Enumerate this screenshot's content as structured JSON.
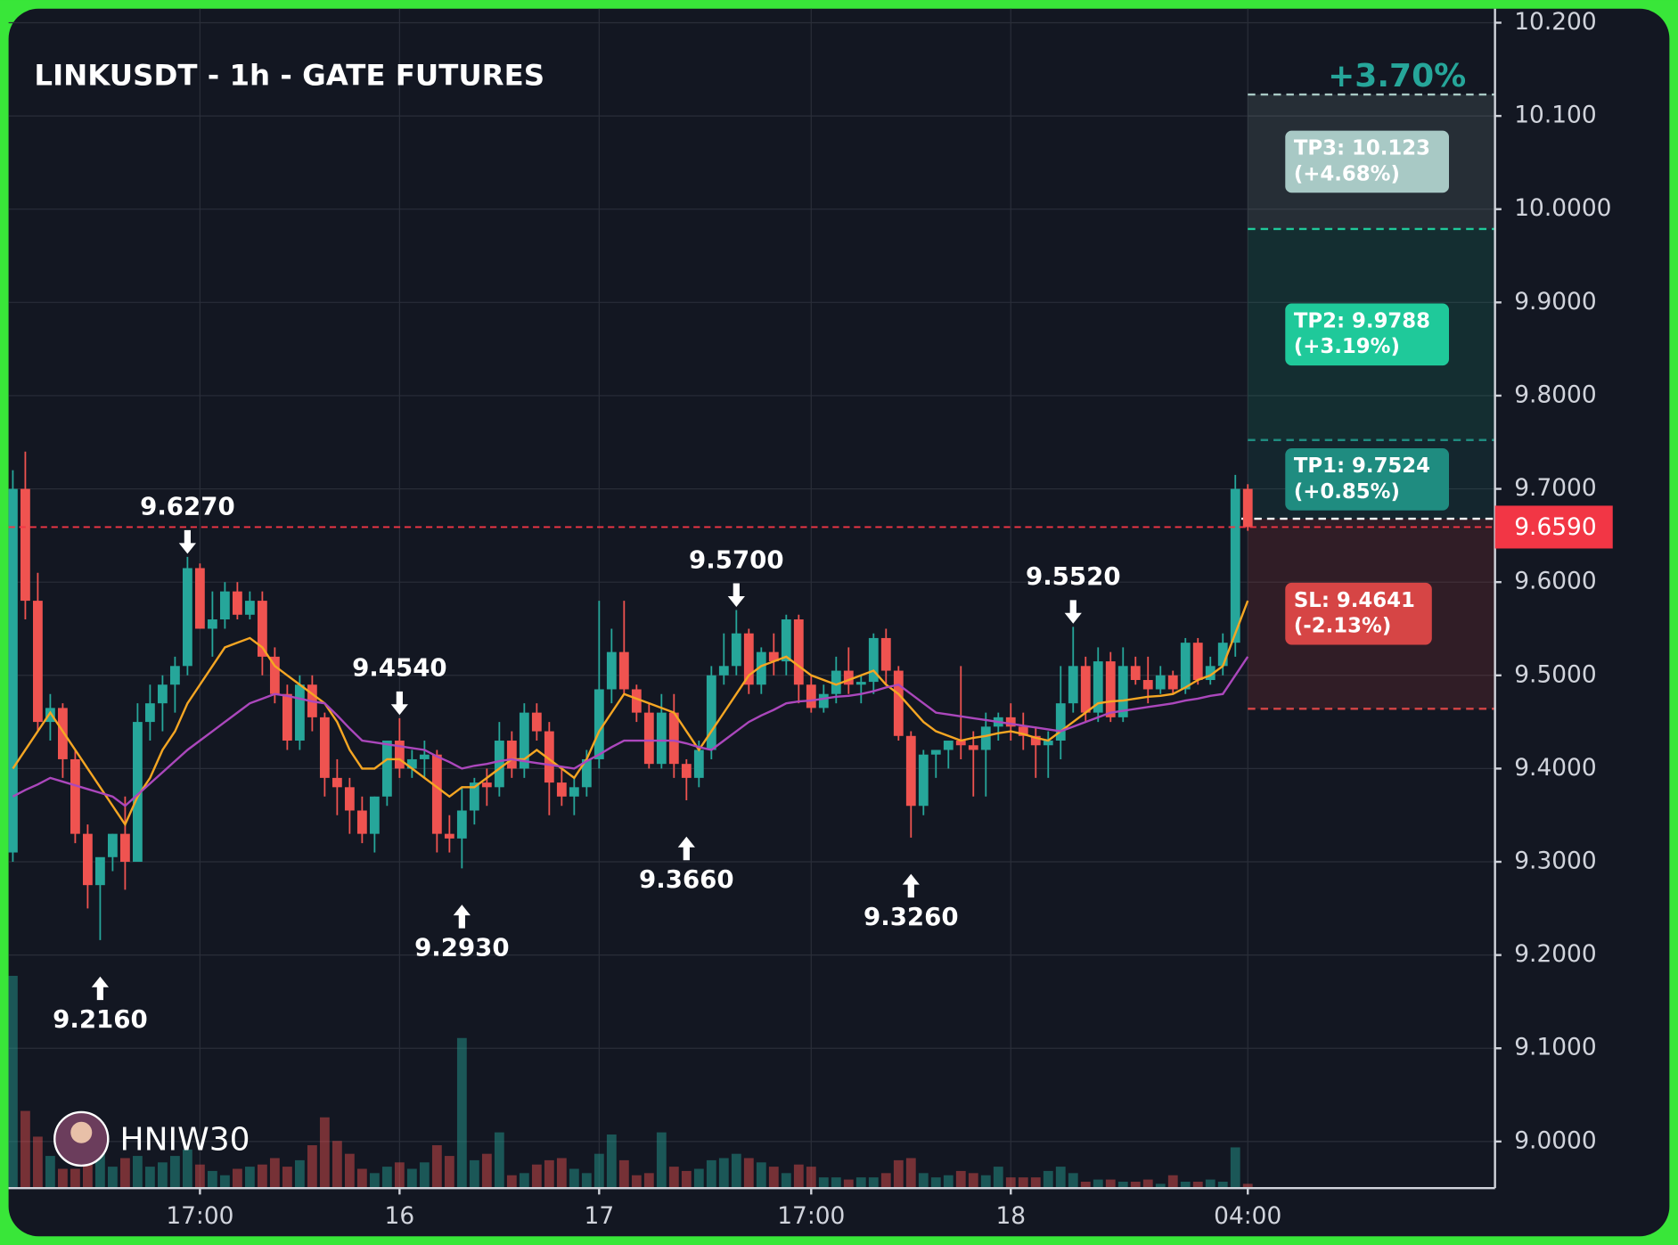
{
  "chart_data": {
    "type": "candlestick",
    "title": "LINKUSDT - 1h - GATE FUTURES",
    "watermark": "HNIW30",
    "categories": [
      null,
      null,
      null,
      null,
      null,
      null,
      null,
      null,
      null,
      null,
      null,
      null,
      null,
      null,
      null,
      "17:00",
      null,
      null,
      null,
      null,
      null,
      null,
      null,
      null,
      null,
      null,
      null,
      null,
      null,
      null,
      null,
      "16",
      null,
      null,
      null,
      null,
      null,
      null,
      null,
      null,
      null,
      null,
      null,
      null,
      null,
      null,
      null,
      "17",
      null,
      null,
      null,
      null,
      null,
      null,
      null,
      null,
      null,
      null,
      null,
      null,
      null,
      null,
      null,
      null,
      "17:00",
      null,
      null,
      null,
      null,
      null,
      null,
      null,
      null,
      null,
      null,
      null,
      null,
      null,
      null,
      null,
      "18",
      null,
      null,
      null,
      null,
      null,
      null,
      null,
      null,
      null,
      null,
      null,
      null,
      null,
      null,
      null,
      null,
      null,
      null,
      "04:00"
    ],
    "open": [
      9.31,
      9.7,
      9.58,
      9.45,
      9.465,
      9.41,
      9.33,
      9.275,
      9.305,
      9.33,
      9.3,
      9.45,
      9.47,
      9.49,
      9.51,
      9.615,
      9.55,
      9.56,
      9.59,
      9.565,
      9.58,
      9.52,
      9.48,
      9.43,
      9.49,
      9.455,
      9.39,
      9.38,
      9.355,
      9.33,
      9.37,
      9.43,
      9.4,
      9.41,
      9.415,
      9.33,
      9.325,
      9.355,
      9.385,
      9.38,
      9.43,
      9.4,
      9.46,
      9.44,
      9.385,
      9.37,
      9.38,
      9.41,
      9.485,
      9.525,
      9.485,
      9.46,
      9.405,
      9.46,
      9.405,
      9.39,
      9.42,
      9.5,
      9.51,
      9.545,
      9.49,
      9.525,
      9.515,
      9.56,
      9.49,
      9.465,
      9.48,
      9.505,
      9.49,
      9.493,
      9.54,
      9.505,
      9.435,
      9.36,
      9.415,
      9.42,
      9.43,
      9.425,
      9.42,
      9.445,
      9.455,
      9.445,
      9.435,
      9.425,
      9.43,
      9.47,
      9.51,
      9.46,
      9.515,
      9.455,
      9.51,
      9.495,
      9.485,
      9.5,
      9.485,
      9.535,
      9.495,
      9.51,
      9.535,
      9.7
    ],
    "high": [
      9.72,
      9.74,
      9.61,
      9.48,
      9.47,
      9.42,
      9.34,
      9.3,
      9.33,
      9.37,
      9.47,
      9.49,
      9.5,
      9.52,
      9.627,
      9.62,
      9.59,
      9.6,
      9.6,
      9.59,
      9.59,
      9.53,
      9.49,
      9.5,
      9.5,
      9.46,
      9.41,
      9.39,
      9.37,
      9.37,
      9.43,
      9.454,
      9.42,
      9.43,
      9.42,
      9.35,
      9.38,
      9.39,
      9.4,
      9.45,
      9.44,
      9.47,
      9.47,
      9.45,
      9.4,
      9.39,
      9.42,
      9.58,
      9.55,
      9.58,
      9.49,
      9.47,
      9.48,
      9.48,
      9.41,
      9.43,
      9.51,
      9.545,
      9.57,
      9.55,
      9.53,
      9.545,
      9.565,
      9.565,
      9.5,
      9.49,
      9.52,
      9.53,
      9.5,
      9.545,
      9.55,
      9.51,
      9.44,
      9.42,
      9.42,
      9.43,
      9.51,
      9.44,
      9.46,
      9.46,
      9.47,
      9.46,
      9.445,
      9.44,
      9.51,
      9.552,
      9.52,
      9.53,
      9.525,
      9.53,
      9.52,
      9.52,
      9.51,
      9.505,
      9.54,
      9.54,
      9.52,
      9.545,
      9.715,
      9.705
    ],
    "low": [
      9.3,
      9.56,
      9.44,
      9.43,
      9.39,
      9.32,
      9.25,
      9.216,
      9.29,
      9.27,
      9.3,
      9.43,
      9.44,
      9.46,
      9.5,
      9.55,
      9.52,
      9.55,
      9.56,
      9.56,
      9.5,
      9.47,
      9.42,
      9.42,
      9.44,
      9.37,
      9.35,
      9.33,
      9.32,
      9.31,
      9.36,
      9.39,
      9.39,
      9.39,
      9.31,
      9.31,
      9.293,
      9.34,
      9.36,
      9.37,
      9.39,
      9.39,
      9.43,
      9.35,
      9.36,
      9.35,
      9.37,
      9.4,
      9.47,
      9.48,
      9.45,
      9.4,
      9.4,
      9.39,
      9.366,
      9.38,
      9.41,
      9.49,
      9.5,
      9.48,
      9.48,
      9.5,
      9.5,
      9.47,
      9.46,
      9.46,
      9.47,
      9.48,
      9.47,
      9.48,
      9.49,
      9.43,
      9.326,
      9.35,
      9.39,
      9.4,
      9.41,
      9.37,
      9.37,
      9.43,
      9.43,
      9.42,
      9.39,
      9.39,
      9.41,
      9.46,
      9.45,
      9.45,
      9.45,
      9.45,
      9.49,
      9.47,
      9.48,
      9.48,
      9.48,
      9.49,
      9.49,
      9.5,
      9.52,
      9.655
    ],
    "close": [
      9.7,
      9.58,
      9.45,
      9.465,
      9.41,
      9.33,
      9.275,
      9.305,
      9.33,
      9.3,
      9.45,
      9.47,
      9.49,
      9.51,
      9.615,
      9.55,
      9.56,
      9.59,
      9.565,
      9.58,
      9.52,
      9.48,
      9.43,
      9.49,
      9.455,
      9.39,
      9.38,
      9.355,
      9.33,
      9.37,
      9.43,
      9.4,
      9.41,
      9.415,
      9.33,
      9.325,
      9.355,
      9.385,
      9.38,
      9.43,
      9.4,
      9.46,
      9.44,
      9.385,
      9.37,
      9.38,
      9.41,
      9.485,
      9.525,
      9.485,
      9.46,
      9.405,
      9.46,
      9.405,
      9.39,
      9.42,
      9.5,
      9.51,
      9.545,
      9.49,
      9.525,
      9.515,
      9.56,
      9.49,
      9.465,
      9.48,
      9.505,
      9.49,
      9.493,
      9.54,
      9.505,
      9.435,
      9.36,
      9.415,
      9.42,
      9.43,
      9.425,
      9.42,
      9.445,
      9.455,
      9.445,
      9.435,
      9.425,
      9.43,
      9.47,
      9.51,
      9.46,
      9.515,
      9.455,
      9.51,
      9.495,
      9.485,
      9.5,
      9.485,
      9.535,
      9.495,
      9.51,
      9.535,
      9.7,
      9.659
    ],
    "volume": [
      198,
      72,
      48,
      30,
      18,
      18,
      22,
      32,
      20,
      28,
      30,
      20,
      24,
      30,
      36,
      22,
      16,
      12,
      18,
      20,
      22,
      28,
      20,
      26,
      40,
      66,
      44,
      32,
      18,
      14,
      20,
      24,
      18,
      24,
      40,
      30,
      140,
      26,
      32,
      52,
      12,
      14,
      22,
      26,
      28,
      18,
      14,
      32,
      50,
      26,
      12,
      14,
      52,
      20,
      16,
      18,
      26,
      28,
      32,
      28,
      24,
      20,
      14,
      22,
      20,
      10,
      10,
      8,
      10,
      10,
      14,
      26,
      28,
      14,
      10,
      12,
      16,
      14,
      12,
      20,
      10,
      10,
      10,
      16,
      20,
      14,
      6,
      8,
      8,
      6,
      6,
      8,
      4,
      12,
      6,
      6,
      8,
      6,
      38,
      4
    ],
    "volume_lim": [
      0,
      1100
    ],
    "up_color": "#26a69a",
    "down_color": "#ef5350",
    "lines": [
      {
        "color": "#f5a623",
        "values": [
          9.4,
          9.42,
          9.44,
          9.46,
          9.44,
          9.42,
          9.4,
          9.38,
          9.36,
          9.34,
          9.37,
          9.39,
          9.42,
          9.44,
          9.47,
          9.49,
          9.51,
          9.53,
          9.535,
          9.54,
          9.53,
          9.51,
          9.5,
          9.49,
          9.48,
          9.47,
          9.45,
          9.42,
          9.4,
          9.4,
          9.41,
          9.41,
          9.4,
          9.39,
          9.38,
          9.37,
          9.38,
          9.38,
          9.39,
          9.4,
          9.41,
          9.41,
          9.42,
          9.41,
          9.4,
          9.39,
          9.41,
          9.44,
          9.46,
          9.48,
          9.475,
          9.47,
          9.465,
          9.46,
          9.44,
          9.42,
          9.44,
          9.46,
          9.48,
          9.5,
          9.51,
          9.515,
          9.52,
          9.51,
          9.5,
          9.495,
          9.49,
          9.495,
          9.5,
          9.505,
          9.49,
          9.48,
          9.465,
          9.45,
          9.44,
          9.435,
          9.43,
          9.433,
          9.435,
          9.438,
          9.44,
          9.437,
          9.433,
          9.43,
          9.44,
          9.45,
          9.46,
          9.47,
          9.472,
          9.473,
          9.475,
          9.477,
          9.478,
          9.48,
          9.487,
          9.495,
          9.5,
          9.51,
          9.545,
          9.58
        ]
      },
      {
        "color": "#ab47bc",
        "values": [
          9.37,
          9.377,
          9.383,
          9.39,
          9.386,
          9.382,
          9.378,
          9.374,
          9.37,
          9.36,
          9.372,
          9.384,
          9.396,
          9.408,
          9.42,
          9.43,
          9.44,
          9.45,
          9.46,
          9.47,
          9.475,
          9.48,
          9.478,
          9.475,
          9.472,
          9.47,
          9.457,
          9.443,
          9.43,
          9.428,
          9.426,
          9.424,
          9.422,
          9.42,
          9.413,
          9.407,
          9.4,
          9.403,
          9.405,
          9.408,
          9.41,
          9.408,
          9.406,
          9.404,
          9.402,
          9.4,
          9.408,
          9.415,
          9.423,
          9.43,
          9.43,
          9.43,
          9.43,
          9.43,
          9.427,
          9.423,
          9.42,
          9.43,
          9.44,
          9.45,
          9.457,
          9.463,
          9.47,
          9.472,
          9.473,
          9.475,
          9.477,
          9.478,
          9.48,
          9.483,
          9.487,
          9.49,
          9.48,
          9.47,
          9.46,
          9.458,
          9.456,
          9.454,
          9.452,
          9.45,
          9.448,
          9.446,
          9.444,
          9.442,
          9.44,
          9.445,
          9.45,
          9.455,
          9.46,
          9.462,
          9.464,
          9.466,
          9.468,
          9.47,
          9.473,
          9.475,
          9.478,
          9.48,
          9.5,
          9.52
        ]
      }
    ],
    "ylim": [
      8.95,
      10.215
    ],
    "yticks": [
      {
        "value": 9.0,
        "label": "9.0000"
      },
      {
        "value": 9.1,
        "label": "9.1000"
      },
      {
        "value": 9.2,
        "label": "9.2000"
      },
      {
        "value": 9.3,
        "label": "9.3000"
      },
      {
        "value": 9.4,
        "label": "9.4000"
      },
      {
        "value": 9.5,
        "label": "9.5000"
      },
      {
        "value": 9.6,
        "label": "9.6000"
      },
      {
        "value": 9.7,
        "label": "9.7000"
      },
      {
        "value": 9.8,
        "label": "9.8000"
      },
      {
        "value": 9.9,
        "label": "9.9000"
      },
      {
        "value": 10.0,
        "label": "10.0000"
      },
      {
        "value": 10.1,
        "label": "10.100"
      },
      {
        "value": 10.2,
        "label": "10.200"
      }
    ],
    "grid": true,
    "annotations": [
      {
        "kind": "high",
        "value": 9.627,
        "label": "9.6270"
      },
      {
        "kind": "low",
        "value": 9.216,
        "label": "9.2160"
      },
      {
        "kind": "high",
        "value": 9.454,
        "label": "9.4540"
      },
      {
        "kind": "low",
        "value": 9.293,
        "label": "9.2930"
      },
      {
        "kind": "high",
        "value": 9.57,
        "label": "9.5700"
      },
      {
        "kind": "low",
        "value": 9.366,
        "label": "9.3660"
      },
      {
        "kind": "low",
        "value": 9.326,
        "label": "9.3260"
      },
      {
        "kind": "high",
        "value": 9.552,
        "label": "9.5520"
      }
    ],
    "trade": {
      "price": {
        "value": 9.659,
        "label": "9.6590"
      },
      "price_color": "#f23645",
      "entry": 9.668,
      "change": "+3.70%",
      "targets": [
        {
          "value": 10.123,
          "label": "TP3: 10.123",
          "pct": "(+4.68%)",
          "color": "#a8c9c5"
        },
        {
          "value": 9.9788,
          "label": "TP2: 9.9788",
          "pct": "(+3.19%)",
          "color": "#1fc99a"
        },
        {
          "value": 9.7524,
          "label": "TP1: 9.7524",
          "pct": "(+0.85%)",
          "color": "#1f8c80"
        }
      ],
      "stop": {
        "value": 9.4641,
        "label": "SL: 9.4641",
        "pct": "(-2.13%)",
        "color": "#d64545"
      }
    }
  }
}
